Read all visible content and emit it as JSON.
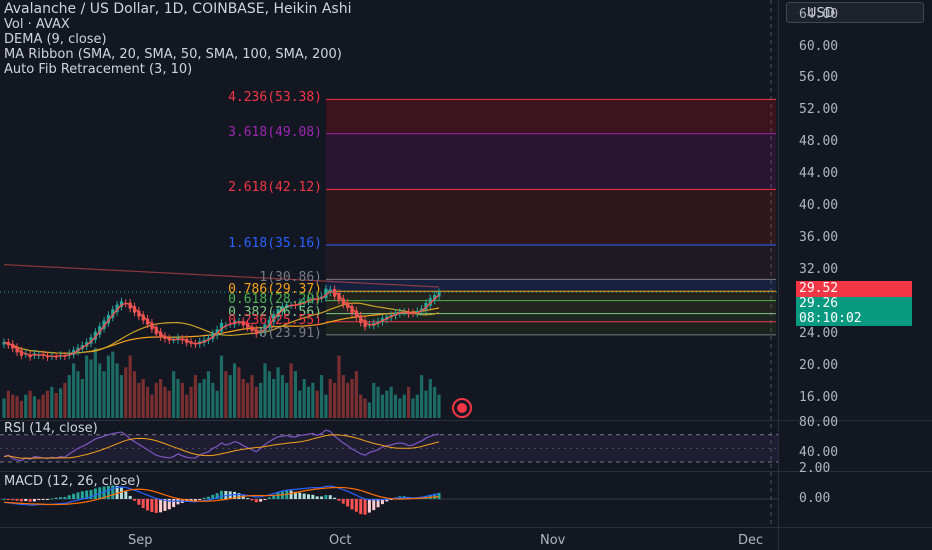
{
  "legend": {
    "title": "Avalanche / US Dollar, 1D, COINBASE, Heikin Ashi",
    "vol": "Vol · AVAX",
    "dema": "DEMA (9, close)",
    "ma_ribbon": "MA Ribbon (SMA, 20, SMA, 50, SMA, 100, SMA, 200)",
    "fib": "Auto Fib Retracement (3, 10)"
  },
  "currency_button": "USD",
  "rsi_title": "RSI (14, close)",
  "macd_title": "MACD (12, 26, close)",
  "last_price": {
    "high_tag": "29.52",
    "price": "29.26",
    "countdown": "08:10:02"
  },
  "colors": {
    "up": "#26a69a",
    "down": "#ef5350",
    "background": "#131722"
  },
  "chart_data": {
    "type": "candlestick",
    "price_axis": {
      "min": 16,
      "max": 64,
      "ticks": [
        "64.00",
        "60.00",
        "56.00",
        "52.00",
        "48.00",
        "44.00",
        "40.00",
        "36.00",
        "32.00",
        "24.00",
        "20.00",
        "16.00"
      ]
    },
    "rsi_axis": {
      "ticks": [
        "80.00",
        "40.00",
        "2.00"
      ]
    },
    "macd_axis": {
      "ticks": [
        "0.00"
      ]
    },
    "x_ticks": [
      "Sep",
      "Oct",
      "Nov",
      "Dec"
    ],
    "fib_levels": [
      {
        "label": "4.236(53.38)",
        "value": 53.38,
        "color": "#f23645"
      },
      {
        "label": "3.618(49.08)",
        "value": 49.08,
        "color": "#9c27b0"
      },
      {
        "label": "2.618(42.12)",
        "value": 42.12,
        "color": "#f23645"
      },
      {
        "label": "1.618(35.16)",
        "value": 35.16,
        "color": "#2962ff"
      },
      {
        "label": "1(30.86)",
        "value": 30.86,
        "color": "#787b86"
      },
      {
        "label": "0.786(29.37)",
        "value": 29.37,
        "color": "#f7a21b"
      },
      {
        "label": "0.618(28.20)",
        "value": 28.2,
        "color": "#4caf50"
      },
      {
        "label": "0.382(26.56)",
        "value": 26.56,
        "color": "#81c784"
      },
      {
        "label": "0.236(25.55)",
        "value": 25.55,
        "color": "#f23645"
      },
      {
        "label": "0(23.91)",
        "value": 23.91,
        "color": "#787b86"
      }
    ],
    "closes": [
      23.0,
      22.6,
      22.2,
      21.7,
      21.3,
      21.6,
      21.1,
      21.6,
      21.4,
      21.3,
      21.1,
      21.3,
      21.2,
      21.4,
      21.2,
      21.6,
      22.0,
      22.3,
      22.6,
      23.0,
      23.6,
      24.3,
      25.0,
      25.7,
      26.4,
      27.1,
      27.7,
      28.1,
      27.8,
      27.2,
      26.7,
      26.2,
      25.7,
      25.2,
      24.6,
      24.0,
      23.6,
      23.4,
      23.2,
      23.3,
      23.6,
      23.2,
      22.9,
      22.8,
      22.7,
      23.1,
      23.3,
      23.5,
      24.1,
      24.6,
      25.4,
      25.1,
      25.3,
      25.7,
      25.6,
      25.1,
      24.8,
      24.4,
      24.0,
      24.5,
      25.2,
      25.8,
      26.5,
      27.1,
      27.5,
      27.7,
      27.6,
      27.6,
      28.0,
      28.1,
      28.4,
      28.5,
      28.3,
      28.7,
      29.7,
      29.6,
      28.7,
      28.2,
      27.7,
      27.3,
      26.6,
      26.1,
      25.4,
      24.9,
      25.2,
      25.4,
      25.6,
      26.0,
      26.2,
      26.4,
      26.7,
      26.8,
      26.8,
      26.5,
      26.6,
      26.9,
      27.2,
      27.9,
      28.5,
      28.9,
      29.26
    ],
    "volume_relative": [
      0.25,
      0.35,
      0.3,
      0.28,
      0.22,
      0.3,
      0.35,
      0.28,
      0.24,
      0.3,
      0.35,
      0.4,
      0.32,
      0.38,
      0.45,
      0.55,
      0.7,
      0.6,
      0.5,
      0.8,
      0.75,
      0.9,
      0.7,
      0.6,
      0.8,
      0.85,
      0.7,
      0.55,
      0.65,
      0.8,
      0.6,
      0.45,
      0.5,
      0.4,
      0.3,
      0.45,
      0.5,
      0.4,
      0.35,
      0.6,
      0.5,
      0.45,
      0.3,
      0.4,
      0.55,
      0.45,
      0.5,
      0.6,
      0.45,
      0.35,
      0.8,
      0.6,
      0.55,
      0.7,
      0.65,
      0.5,
      0.45,
      0.55,
      0.4,
      0.45,
      0.7,
      0.6,
      0.5,
      0.65,
      0.55,
      0.45,
      0.7,
      0.6,
      0.35,
      0.5,
      0.4,
      0.45,
      0.35,
      0.55,
      0.3,
      0.5,
      0.45,
      0.8,
      0.55,
      0.45,
      0.5,
      0.6,
      0.3,
      0.25,
      0.2,
      0.45,
      0.4,
      0.3,
      0.35,
      0.4,
      0.3,
      0.25,
      0.3,
      0.4,
      0.25,
      0.3,
      0.55,
      0.35,
      0.5,
      0.4,
      0.3
    ],
    "rsi": [
      38,
      40,
      35,
      33,
      32,
      36,
      34,
      38,
      37,
      36,
      35,
      37,
      36,
      38,
      37,
      42,
      46,
      50,
      53,
      56,
      60,
      64,
      66,
      68,
      70,
      72,
      73,
      74,
      70,
      64,
      60,
      56,
      52,
      48,
      44,
      40,
      38,
      37,
      36,
      38,
      42,
      39,
      37,
      36,
      36,
      40,
      43,
      45,
      50,
      53,
      58,
      55,
      57,
      60,
      58,
      54,
      51,
      48,
      45,
      50,
      56,
      60,
      64,
      67,
      68,
      69,
      67,
      67,
      69,
      70,
      71,
      72,
      69,
      72,
      77,
      75,
      68,
      63,
      58,
      54,
      49,
      46,
      42,
      40,
      44,
      46,
      48,
      52,
      54,
      55,
      57,
      58,
      57,
      54,
      55,
      58,
      61,
      65,
      68,
      70,
      71
    ],
    "macd": [
      -0.3,
      -0.35,
      -0.4,
      -0.45,
      -0.5,
      -0.5,
      -0.55,
      -0.55,
      -0.5,
      -0.5,
      -0.5,
      -0.48,
      -0.45,
      -0.42,
      -0.4,
      -0.3,
      -0.2,
      -0.1,
      0.0,
      0.1,
      0.2,
      0.35,
      0.5,
      0.65,
      0.8,
      0.95,
      1.05,
      1.1,
      1.05,
      0.95,
      0.8,
      0.65,
      0.5,
      0.35,
      0.2,
      0.05,
      -0.05,
      -0.12,
      -0.18,
      -0.2,
      -0.18,
      -0.2,
      -0.22,
      -0.24,
      -0.25,
      -0.2,
      -0.15,
      -0.1,
      0.0,
      0.1,
      0.25,
      0.3,
      0.35,
      0.4,
      0.42,
      0.38,
      0.32,
      0.25,
      0.18,
      0.2,
      0.28,
      0.38,
      0.5,
      0.62,
      0.72,
      0.8,
      0.85,
      0.88,
      0.92,
      0.96,
      1.0,
      1.04,
      1.02,
      1.05,
      1.15,
      1.18,
      1.1,
      0.98,
      0.85,
      0.7,
      0.52,
      0.35,
      0.15,
      0.0,
      -0.05,
      -0.08,
      -0.08,
      -0.05,
      -0.02,
      0.02,
      0.06,
      0.1,
      0.12,
      0.1,
      0.1,
      0.12,
      0.16,
      0.24,
      0.32,
      0.4,
      0.48
    ]
  }
}
